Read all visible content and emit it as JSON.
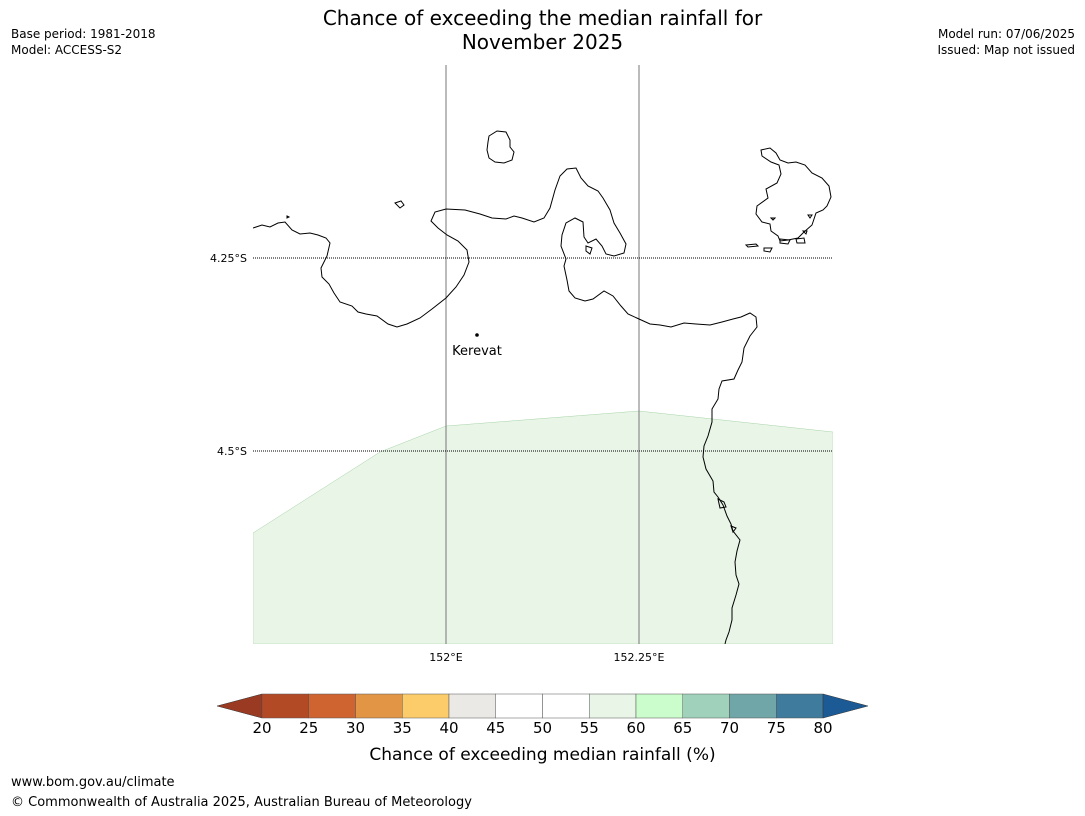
{
  "title": {
    "line1": "Chance of exceeding the median rainfall for",
    "line2": "November 2025"
  },
  "meta_left": {
    "base_period": "Base period: 1981-2018",
    "model": "Model: ACCESS-S2"
  },
  "meta_right": {
    "model_run": "Model run: 07/06/2025",
    "issued": "Issued: Map not issued"
  },
  "map": {
    "lat_labels": [
      "4.25°S",
      "4.5°S"
    ],
    "lon_labels": [
      "152°E",
      "152.25°E"
    ],
    "place_label": "Kerevat",
    "shaded_category": "55-60",
    "shaded_color": "#e8f5e7"
  },
  "colorbar": {
    "ticks": [
      "20",
      "25",
      "30",
      "35",
      "40",
      "45",
      "50",
      "55",
      "60",
      "65",
      "70",
      "75",
      "80"
    ],
    "label": "Chance of exceeding median rainfall (%)",
    "under_color": "#9a3a23",
    "over_color": "#1b5a94",
    "colors": [
      "#b34a26",
      "#cf6431",
      "#e29645",
      "#fdcc6a",
      "#ebe9e5",
      "#ffffff",
      "#ffffff",
      "#e8f5e7",
      "#cbfccb",
      "#9fd1bb",
      "#70a6a7",
      "#3f7b9c"
    ]
  },
  "footer": {
    "url": "www.bom.gov.au/climate",
    "copyright": "© Commonwealth of Australia 2025, Australian Bureau of Meteorology"
  }
}
